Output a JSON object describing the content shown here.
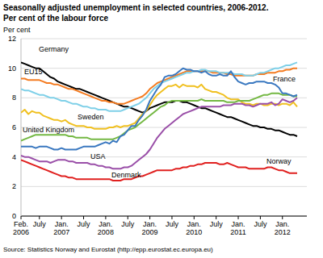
{
  "chart_data": {
    "type": "line",
    "title": "Seasonally adjusted unemployment in selected countries, 2006-2012.",
    "subtitle": "Per cent of the labour force",
    "y_label": "Per cent",
    "annotations": [
      "Source: Statistics Norway and Eurostat (http://epp.eurostat.ec.europa.eu)"
    ],
    "categories": [
      "Feb. 2006",
      null,
      null,
      null,
      null,
      "July",
      null,
      null,
      null,
      null,
      null,
      "Jan. 2007",
      null,
      null,
      null,
      null,
      null,
      "July",
      null,
      null,
      null,
      null,
      null,
      "Jan. 2008",
      null,
      null,
      null,
      null,
      null,
      "July",
      null,
      null,
      null,
      null,
      null,
      "Jan. 2009",
      null,
      null,
      null,
      null,
      null,
      "July",
      null,
      null,
      null,
      null,
      null,
      "Jan. 2010",
      null,
      null,
      null,
      null,
      null,
      "July",
      null,
      null,
      null,
      null,
      null,
      "Jan. 2011",
      null,
      null,
      null,
      null,
      null,
      "July",
      null,
      null,
      null,
      null,
      null,
      "Jan. 2012",
      null,
      null,
      null,
      null
    ],
    "ylim": [
      0,
      12
    ],
    "yticks": [
      0,
      2,
      4,
      6,
      8,
      10,
      12
    ],
    "grid": true,
    "series": [
      {
        "name": "Germany",
        "color": "#000000",
        "values": [
          10.4,
          10.3,
          10.2,
          10.1,
          10.0,
          10.0,
          9.8,
          9.6,
          9.4,
          9.3,
          9.1,
          9.0,
          8.9,
          8.8,
          8.7,
          8.6,
          8.6,
          8.5,
          8.4,
          8.3,
          8.2,
          8.1,
          8.0,
          7.9,
          7.8,
          7.7,
          7.6,
          7.5,
          7.4,
          7.4,
          7.3,
          7.2,
          7.1,
          7.0,
          7.1,
          7.3,
          7.4,
          7.5,
          7.6,
          7.7,
          7.7,
          7.7,
          7.8,
          7.8,
          7.7,
          7.7,
          7.6,
          7.5,
          7.4,
          7.3,
          7.3,
          7.2,
          7.1,
          7.0,
          6.9,
          6.8,
          6.7,
          6.7,
          6.6,
          6.5,
          6.4,
          6.3,
          6.2,
          6.1,
          6.1,
          6.0,
          6.0,
          5.9,
          5.9,
          5.8,
          5.8,
          5.7,
          5.6,
          5.5,
          5.5,
          5.4
        ]
      },
      {
        "name": "France",
        "color": "#f47b20",
        "values": [
          9.3,
          9.3,
          9.2,
          9.2,
          9.2,
          9.2,
          9.1,
          9.0,
          9.0,
          8.9,
          8.9,
          8.8,
          8.7,
          8.6,
          8.6,
          8.5,
          8.4,
          8.3,
          8.2,
          8.1,
          8.0,
          7.9,
          7.8,
          7.8,
          7.7,
          7.7,
          7.6,
          7.6,
          7.6,
          7.7,
          7.8,
          7.9,
          8.0,
          8.1,
          8.3,
          8.6,
          8.8,
          9.0,
          9.1,
          9.2,
          9.3,
          9.4,
          9.5,
          9.6,
          9.7,
          9.8,
          9.8,
          9.8,
          9.8,
          9.8,
          9.8,
          9.8,
          9.7,
          9.7,
          9.7,
          9.7,
          9.6,
          9.6,
          9.5,
          9.5,
          9.5,
          9.5,
          9.5,
          9.5,
          9.6,
          9.6,
          9.6,
          9.7,
          9.7,
          9.7,
          9.8,
          9.8,
          9.9,
          9.9,
          10.0,
          10.0
        ]
      },
      {
        "name": "EU15",
        "color": "#7fd0e8",
        "values": [
          8.6,
          8.5,
          8.5,
          8.4,
          8.3,
          8.2,
          8.2,
          8.1,
          8.0,
          8.0,
          7.9,
          7.8,
          7.8,
          7.7,
          7.6,
          7.6,
          7.5,
          7.4,
          7.4,
          7.3,
          7.3,
          7.2,
          7.2,
          7.2,
          7.1,
          7.1,
          7.1,
          7.1,
          7.2,
          7.3,
          7.4,
          7.5,
          7.6,
          7.8,
          8.0,
          8.3,
          8.6,
          8.8,
          9.0,
          9.1,
          9.2,
          9.3,
          9.4,
          9.5,
          9.6,
          9.7,
          9.7,
          9.8,
          9.8,
          9.9,
          9.9,
          9.8,
          9.8,
          9.8,
          9.7,
          9.7,
          9.7,
          9.7,
          9.6,
          9.6,
          9.6,
          9.5,
          9.5,
          9.5,
          9.6,
          9.7,
          9.7,
          9.8,
          9.9,
          10.0,
          10.0,
          10.1,
          10.2,
          10.2,
          10.3,
          10.4
        ]
      },
      {
        "name": "Sweden",
        "color": "#f0c020",
        "values": [
          7.0,
          7.2,
          6.9,
          7.1,
          7.0,
          7.0,
          6.8,
          6.7,
          6.6,
          6.5,
          6.5,
          6.4,
          6.5,
          6.3,
          6.2,
          6.1,
          6.1,
          6.1,
          6.0,
          6.0,
          5.9,
          5.9,
          5.9,
          5.9,
          6.0,
          6.0,
          6.1,
          6.0,
          6.1,
          6.1,
          6.2,
          6.3,
          6.6,
          6.9,
          7.1,
          7.5,
          7.9,
          8.2,
          8.4,
          8.6,
          8.8,
          8.8,
          8.9,
          8.7,
          8.9,
          8.8,
          8.8,
          8.8,
          8.7,
          8.9,
          8.6,
          8.5,
          8.4,
          8.4,
          8.3,
          8.2,
          8.0,
          7.9,
          7.9,
          7.9,
          7.7,
          7.6,
          7.6,
          7.5,
          7.6,
          7.6,
          7.5,
          7.5,
          7.6,
          7.6,
          7.5,
          7.6,
          7.6,
          7.5,
          7.7,
          7.4
        ]
      },
      {
        "name": "United Kingdom",
        "color": "#74b843",
        "values": [
          5.1,
          5.2,
          5.3,
          5.4,
          5.5,
          5.5,
          5.5,
          5.5,
          5.5,
          5.5,
          5.5,
          5.5,
          5.5,
          5.4,
          5.4,
          5.3,
          5.3,
          5.3,
          5.3,
          5.2,
          5.2,
          5.2,
          5.2,
          5.2,
          5.2,
          5.2,
          5.3,
          5.4,
          5.6,
          5.8,
          5.9,
          6.0,
          6.2,
          6.4,
          6.6,
          6.8,
          7.0,
          7.2,
          7.4,
          7.5,
          7.7,
          7.8,
          7.8,
          7.8,
          7.8,
          7.8,
          7.8,
          7.8,
          7.8,
          7.9,
          7.8,
          7.8,
          7.8,
          7.8,
          7.8,
          7.8,
          7.7,
          7.7,
          7.7,
          7.8,
          7.8,
          7.8,
          7.8,
          7.9,
          8.0,
          8.1,
          8.2,
          8.2,
          8.3,
          8.3,
          8.3,
          8.2,
          8.2,
          8.2,
          8.1,
          8.1
        ]
      },
      {
        "name": "USA",
        "color": "#3a78c0",
        "values": [
          4.7,
          4.7,
          4.7,
          4.7,
          4.6,
          4.7,
          4.7,
          4.7,
          4.6,
          4.5,
          4.5,
          4.6,
          4.5,
          4.5,
          4.5,
          4.5,
          4.6,
          4.7,
          4.7,
          4.7,
          4.7,
          4.8,
          4.9,
          5.0,
          4.9,
          5.1,
          5.0,
          5.4,
          5.5,
          5.8,
          6.1,
          6.1,
          6.5,
          6.8,
          7.2,
          7.8,
          8.2,
          8.6,
          8.9,
          9.4,
          9.5,
          9.5,
          9.6,
          9.8,
          10.0,
          9.9,
          9.9,
          9.8,
          9.8,
          9.7,
          9.8,
          9.6,
          9.5,
          9.5,
          9.6,
          9.5,
          9.5,
          9.8,
          9.4,
          9.1,
          9.0,
          8.9,
          9.0,
          9.0,
          9.1,
          9.1,
          9.1,
          9.0,
          9.0,
          8.9,
          8.7,
          8.3,
          8.3,
          8.2,
          8.1,
          8.2
        ]
      },
      {
        "name": "Denmark",
        "color": "#9a4fa8",
        "values": [
          4.1,
          4.0,
          4.0,
          3.9,
          3.8,
          3.7,
          3.7,
          3.7,
          3.6,
          3.7,
          3.8,
          3.8,
          3.8,
          3.7,
          3.7,
          3.6,
          3.6,
          3.6,
          3.6,
          3.5,
          3.5,
          3.4,
          3.4,
          3.3,
          3.3,
          3.2,
          3.2,
          3.2,
          3.3,
          3.3,
          3.4,
          3.6,
          3.8,
          4.0,
          4.2,
          4.5,
          4.9,
          5.3,
          5.6,
          5.9,
          6.1,
          6.3,
          6.5,
          6.7,
          6.9,
          7.0,
          7.1,
          7.2,
          7.3,
          7.4,
          7.4,
          7.4,
          7.4,
          7.4,
          7.4,
          7.5,
          7.5,
          7.5,
          7.6,
          7.6,
          7.6,
          7.5,
          7.5,
          7.4,
          7.5,
          7.6,
          7.6,
          7.6,
          7.7,
          7.5,
          7.6,
          7.9,
          7.8,
          7.7,
          7.8,
          8.0
        ]
      },
      {
        "name": "Norway",
        "color": "#e0201f",
        "values": [
          3.8,
          3.7,
          3.6,
          3.5,
          3.4,
          3.3,
          3.2,
          3.1,
          3.0,
          2.9,
          2.8,
          2.7,
          2.7,
          2.6,
          2.6,
          2.5,
          2.5,
          2.5,
          2.5,
          2.5,
          2.5,
          2.5,
          2.5,
          2.5,
          2.5,
          2.4,
          2.4,
          2.4,
          2.5,
          2.5,
          2.5,
          2.6,
          2.7,
          2.7,
          2.8,
          2.9,
          3.0,
          3.1,
          3.1,
          3.1,
          3.1,
          3.1,
          3.2,
          3.2,
          3.3,
          3.3,
          3.4,
          3.4,
          3.5,
          3.5,
          3.6,
          3.6,
          3.6,
          3.6,
          3.5,
          3.5,
          3.6,
          3.5,
          3.4,
          3.3,
          3.3,
          3.3,
          3.2,
          3.2,
          3.2,
          3.2,
          3.2,
          3.3,
          3.3,
          3.2,
          3.1,
          3.1,
          3.0,
          2.9,
          2.9,
          2.9
        ]
      }
    ]
  }
}
